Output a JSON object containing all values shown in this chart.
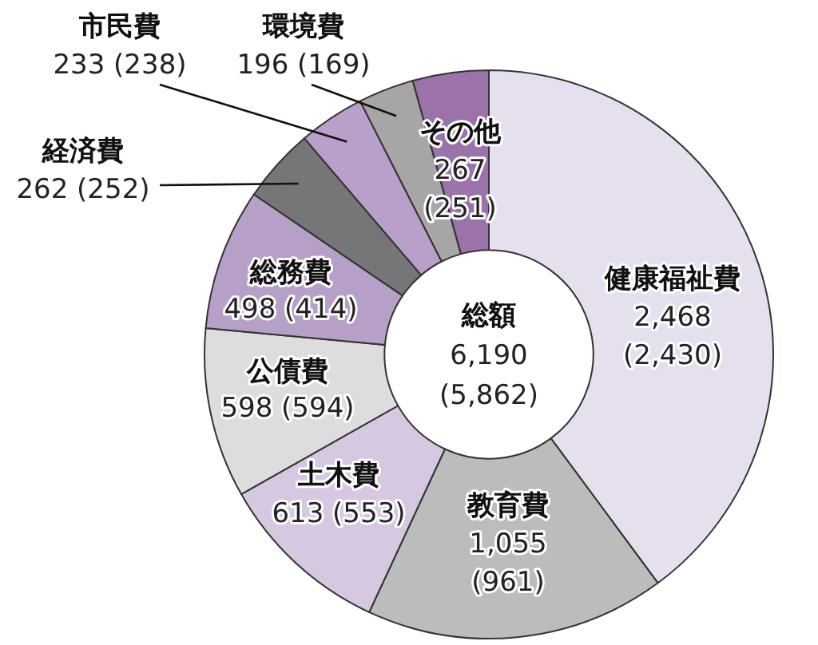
{
  "chart_data": {
    "type": "donut",
    "categories": [
      "健康福祉費",
      "教育費",
      "土木費",
      "公債費",
      "総務費",
      "経済費",
      "市民費",
      "環境費",
      "その他"
    ],
    "values": [
      2468,
      1055,
      613,
      598,
      498,
      262,
      233,
      196,
      267
    ],
    "colors": [
      "#e6e0ee",
      "#bcbcbc",
      "#d6c8e0",
      "#dddddd",
      "#b6a0c8",
      "#767676",
      "#b9a0cb",
      "#a6a6a6",
      "#9b72aa"
    ],
    "value_labels": [
      "2,468\n(2,430)",
      "1,055\n(961)",
      "613 (553)",
      "598 (594)",
      "498 (414)",
      "262 (252)",
      "233 (238)",
      "196 (169)",
      "267\n(251)"
    ],
    "annotations": [
      "総額\n6,190\n(5,862)"
    ]
  }
}
